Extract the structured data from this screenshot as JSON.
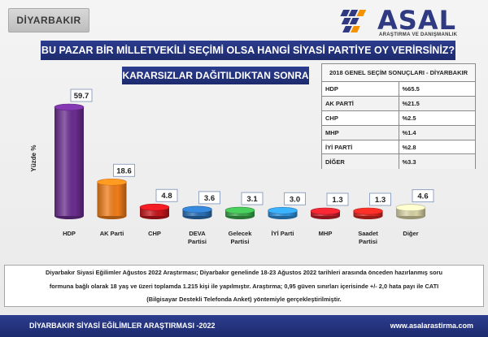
{
  "region": "DİYARBAKIR",
  "logo": {
    "word": "ASAL",
    "subtitle": "ARAŞTIRMA VE DANIŞMANLIK"
  },
  "title": "BU PAZAR BİR MİLLETVEKİLİ SEÇİMİ OLSA HANGİ SİYASİ PARTİYE OY VERİRSİNİZ?",
  "subtitle": "KARARSIZLAR DAĞITILDIKTAN SONRA",
  "results_table": {
    "header": "2018 GENEL SEÇİM SONUÇLARI - DİYARBAKIR",
    "rows": [
      {
        "party": "HDP",
        "value": "%65.5"
      },
      {
        "party": "AK PARTİ",
        "value": "%21.5"
      },
      {
        "party": "CHP",
        "value": "%2.5"
      },
      {
        "party": "MHP",
        "value": "%1.4"
      },
      {
        "party": "İYİ PARTİ",
        "value": "%2.8"
      },
      {
        "party": "DİĞER",
        "value": "%3.3"
      }
    ]
  },
  "chart_data": {
    "type": "bar",
    "ylabel": "Yüzde %",
    "categories": [
      "HDP",
      "AK Parti",
      "CHP",
      "DEVA Partisi",
      "Gelecek Partisi",
      "İYİ Parti",
      "MHP",
      "Saadet Partisi",
      "Diğer"
    ],
    "values": [
      59.7,
      18.6,
      4.8,
      3.6,
      3.1,
      3.0,
      1.3,
      1.3,
      4.6
    ],
    "value_labels": [
      "59.7",
      "18.6",
      "4.8",
      "3.6",
      "3.1",
      "3.0",
      "1.3",
      "1.3",
      "4.6"
    ],
    "colors": [
      "#6a2d8f",
      "#f07d1a",
      "#c4161c",
      "#2b6fb3",
      "#3aa64a",
      "#2f8fd8",
      "#c8202a",
      "#d8261f",
      "#d9d3a6"
    ],
    "grid": false,
    "legend": "none"
  },
  "footer": {
    "lines": [
      "Diyarbakır Siyasi Eğilimler Ağustos 2022 Araştırması; Diyarbakır genelinde 18-23 Ağustos 2022 tarihleri arasında önceden hazırlanmış soru",
      "formuna bağlı olarak 18 yaş ve üzeri toplamda 1.215 kişi ile yapılmıştır. Araştırma; 0,95 güven sınırları içerisinde +/- 2,0 hata payı ile CATI",
      "(Bilgisayar Destekli Telefonda Anket) yöntemiyle gerçekleştirilmiştir."
    ]
  },
  "bottom_bar": {
    "left": "DİYARBAKIR SİYASİ EĞİLİMLER ARAŞTIRMASI -2022",
    "right": "www.asalarastirma.com"
  }
}
